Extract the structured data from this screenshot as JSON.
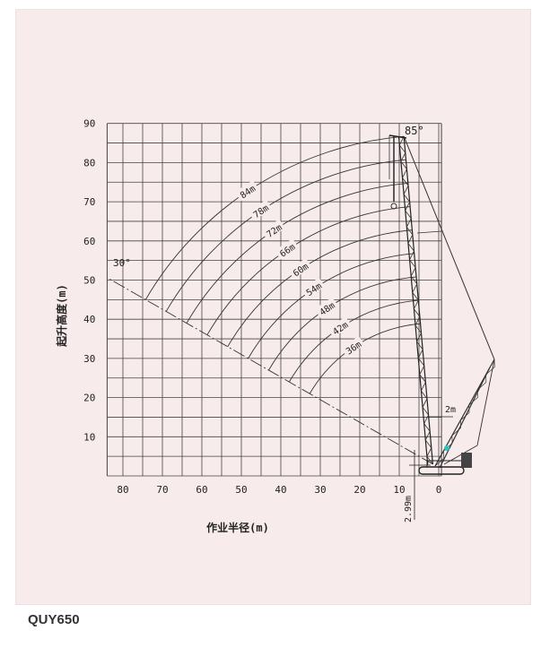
{
  "caption": "QUY650",
  "chart_data": {
    "type": "diagram",
    "title": "",
    "xlabel": "作业半径(m)",
    "ylabel": "起升高度(m)",
    "x_ticks": [
      80,
      70,
      60,
      50,
      40,
      30,
      20,
      10,
      0
    ],
    "y_ticks": [
      10,
      20,
      30,
      40,
      50,
      60,
      70,
      80,
      90
    ],
    "x_direction": "reversed",
    "xlim": [
      84,
      0
    ],
    "ylim": [
      0,
      90
    ],
    "grid": true,
    "grid_step": 5,
    "boom_lengths": [
      84,
      78,
      72,
      66,
      60,
      54,
      48,
      42,
      36
    ],
    "boom_length_labels": [
      "84m",
      "78m",
      "72m",
      "66m",
      "60m",
      "54m",
      "48m",
      "42m",
      "36m"
    ],
    "min_angle_label": "30°",
    "max_angle_label": "85°",
    "min_angle": 30,
    "max_angle": 85,
    "dimension_labels": {
      "offset": "2m",
      "pivot_height": "2.99m"
    },
    "line_color": "#333333",
    "accent_color": "#2ec4c4"
  }
}
